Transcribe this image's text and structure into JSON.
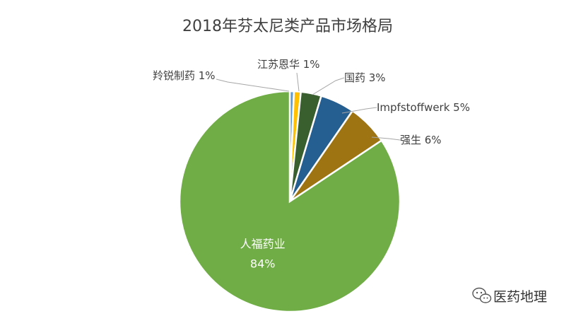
{
  "chart_data": {
    "type": "pie",
    "title": "2018年芬太尼类产品市场格局",
    "slices": [
      {
        "name": "人福药业",
        "value": 84,
        "label": "84%",
        "color": "#70ad47"
      },
      {
        "name": "羚锐制药",
        "value": 0.6,
        "label": "1%",
        "color": "#5b9bd5"
      },
      {
        "name": "江苏恩华",
        "value": 1,
        "label": "1%",
        "color": "#ffc000"
      },
      {
        "name": "国药",
        "value": 3,
        "label": "3%",
        "color": "#3a5f2e"
      },
      {
        "name": "Impfstoffwerk",
        "value": 5,
        "label": "5%",
        "color": "#255e91"
      },
      {
        "name": "强生",
        "value": 6,
        "label": "6%",
        "color": "#9e7413"
      }
    ]
  },
  "watermark": {
    "text": "医药地理",
    "icon": "wechat-icon"
  }
}
